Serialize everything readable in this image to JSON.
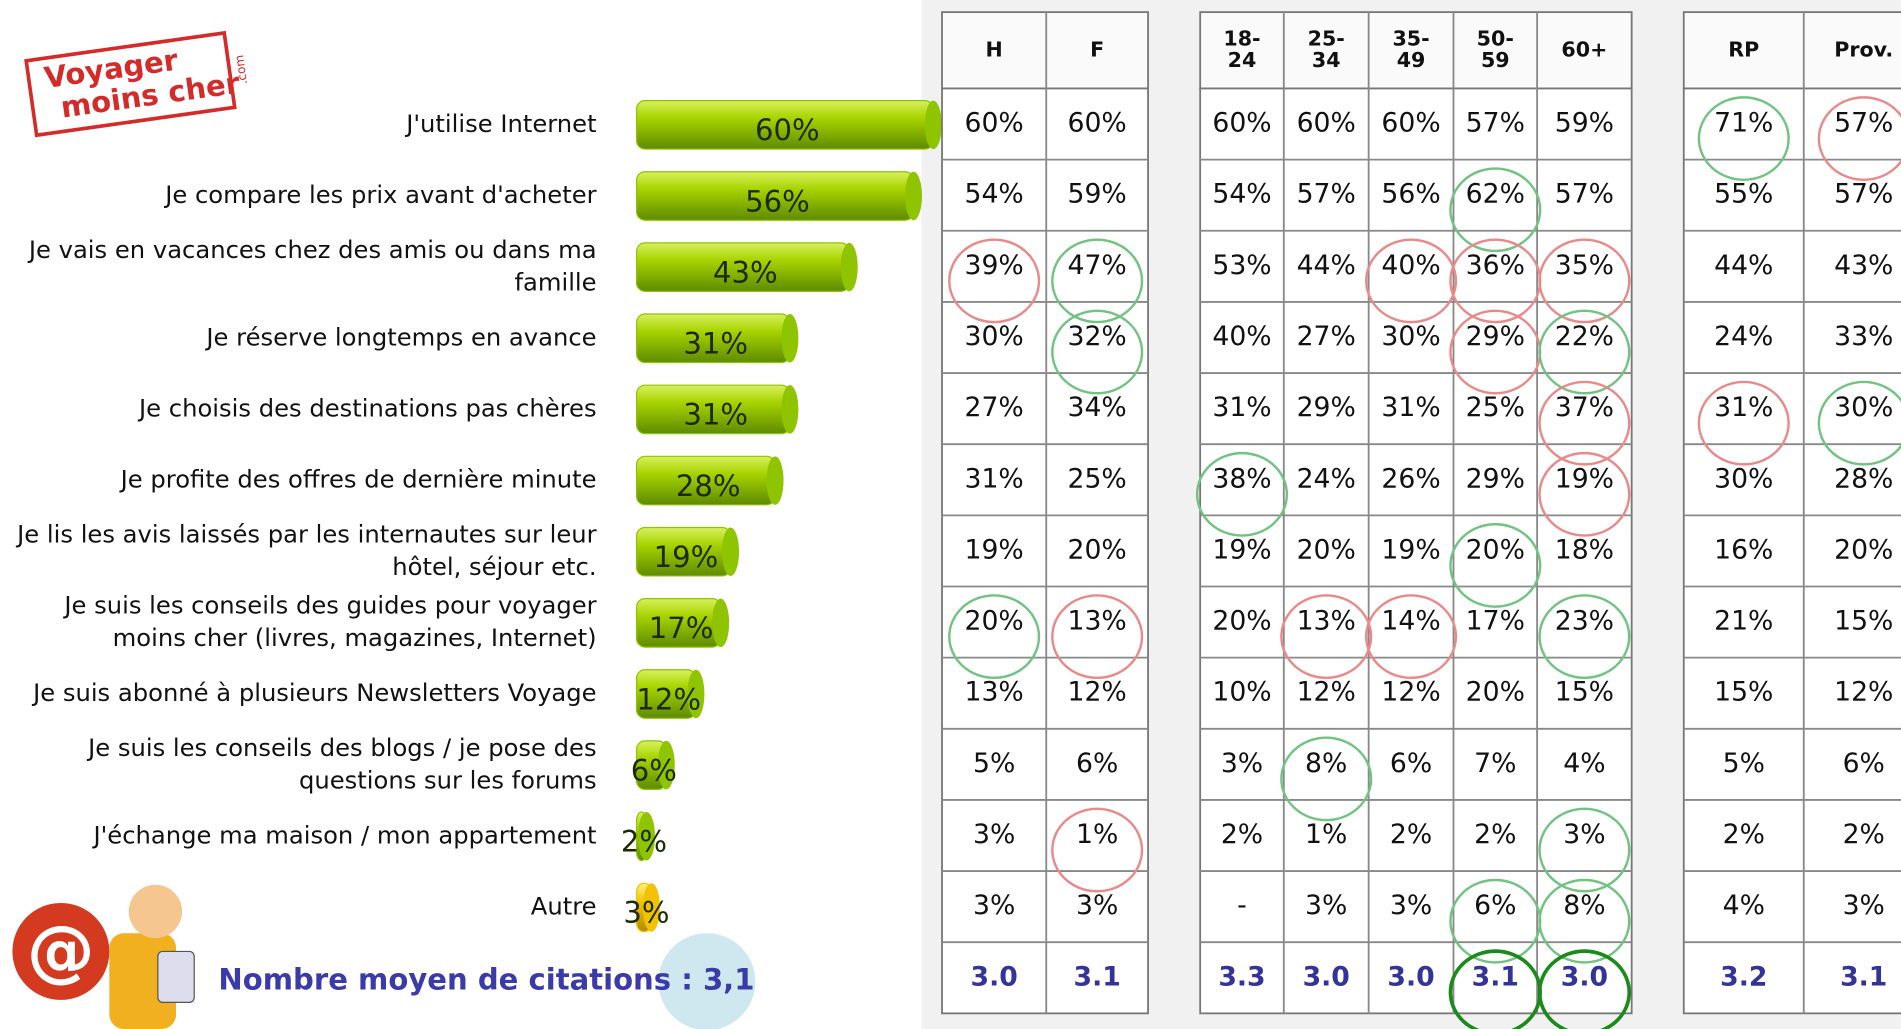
{
  "chart_data": {
    "type": "bar",
    "categories": [
      "J'utilise Internet",
      "Je compare les prix avant d'acheter",
      "Je vais en vacances chez des amis ou dans ma famille",
      "Je réserve longtemps en avance",
      "Je choisis des destinations pas chères",
      "Je profite des offres de dernière minute",
      "Je lis les avis laissés par les internautes sur leur hôtel, séjour etc.",
      "Je suis les conseils des guides pour voyager moins cher (livres, magazines, Internet)",
      "Je suis abonné à  plusieurs Newsletters Voyage",
      "Je suis les conseils des blogs / je pose des questions sur les forums",
      "J'échange ma maison / mon appartement",
      "Autre"
    ],
    "values": [
      60,
      56,
      43,
      31,
      31,
      28,
      19,
      17,
      12,
      6,
      2,
      3
    ],
    "value_labels": [
      "60%",
      "56%",
      "43%",
      "31%",
      "31%",
      "28%",
      "19%",
      "17%",
      "12%",
      "6%",
      "2%",
      "3%"
    ],
    "colors": [
      "#8fc400",
      "#8fc400",
      "#8fc400",
      "#8fc400",
      "#8fc400",
      "#8fc400",
      "#8fc400",
      "#8fc400",
      "#8fc400",
      "#8fc400",
      "#8fc400",
      "#f2c200"
    ],
    "annotation": "Nombre moyen de citations : 3,1"
  },
  "logo": {
    "line1": "Voyager",
    "line2": "moins cher",
    "suffix": ".com"
  },
  "table": {
    "groups": [
      {
        "headers": [
          [
            "H"
          ],
          [
            "F"
          ]
        ],
        "rows": [
          [
            "60%",
            "60%"
          ],
          [
            "54%",
            "59%"
          ],
          [
            "39%",
            "47%"
          ],
          [
            "30%",
            "32%"
          ],
          [
            "27%",
            "34%"
          ],
          [
            "31%",
            "25%"
          ],
          [
            "19%",
            "20%"
          ],
          [
            "20%",
            "13%"
          ],
          [
            "13%",
            "12%"
          ],
          [
            "5%",
            "6%"
          ],
          [
            "3%",
            "1%"
          ],
          [
            "3%",
            "3%"
          ]
        ],
        "means": [
          "3.0",
          "3.1"
        ]
      },
      {
        "headers": [
          [
            "18-",
            "24"
          ],
          [
            "25-",
            "34"
          ],
          [
            "35-",
            "49"
          ],
          [
            "50-",
            "59"
          ],
          [
            "60+"
          ]
        ],
        "rows": [
          [
            "60%",
            "60%",
            "60%",
            "57%",
            "59%"
          ],
          [
            "54%",
            "57%",
            "56%",
            "62%",
            "57%"
          ],
          [
            "53%",
            "44%",
            "40%",
            "36%",
            "35%"
          ],
          [
            "40%",
            "27%",
            "30%",
            "29%",
            "22%"
          ],
          [
            "31%",
            "29%",
            "31%",
            "25%",
            "37%"
          ],
          [
            "38%",
            "24%",
            "26%",
            "29%",
            "19%"
          ],
          [
            "19%",
            "20%",
            "19%",
            "20%",
            "18%"
          ],
          [
            "20%",
            "13%",
            "14%",
            "17%",
            "23%"
          ],
          [
            "10%",
            "12%",
            "12%",
            "20%",
            "15%"
          ],
          [
            "3%",
            "8%",
            "6%",
            "7%",
            "4%"
          ],
          [
            "2%",
            "1%",
            "2%",
            "2%",
            "3%"
          ],
          [
            "-",
            "3%",
            "3%",
            "6%",
            "8%"
          ]
        ],
        "means": [
          "3.3",
          "3.0",
          "3.0",
          "3.1",
          "3.0"
        ]
      },
      {
        "headers": [
          [
            "RP"
          ],
          [
            "Prov."
          ]
        ],
        "rows": [
          [
            "71%",
            "57%"
          ],
          [
            "55%",
            "57%"
          ],
          [
            "44%",
            "43%"
          ],
          [
            "24%",
            "33%"
          ],
          [
            "31%",
            "30%"
          ],
          [
            "30%",
            "28%"
          ],
          [
            "16%",
            "20%"
          ],
          [
            "21%",
            "15%"
          ],
          [
            "15%",
            "12%"
          ],
          [
            "5%",
            "6%"
          ],
          [
            "2%",
            "2%"
          ],
          [
            "4%",
            "3%"
          ]
        ],
        "means": [
          "3.2",
          "3.1"
        ]
      }
    ]
  }
}
